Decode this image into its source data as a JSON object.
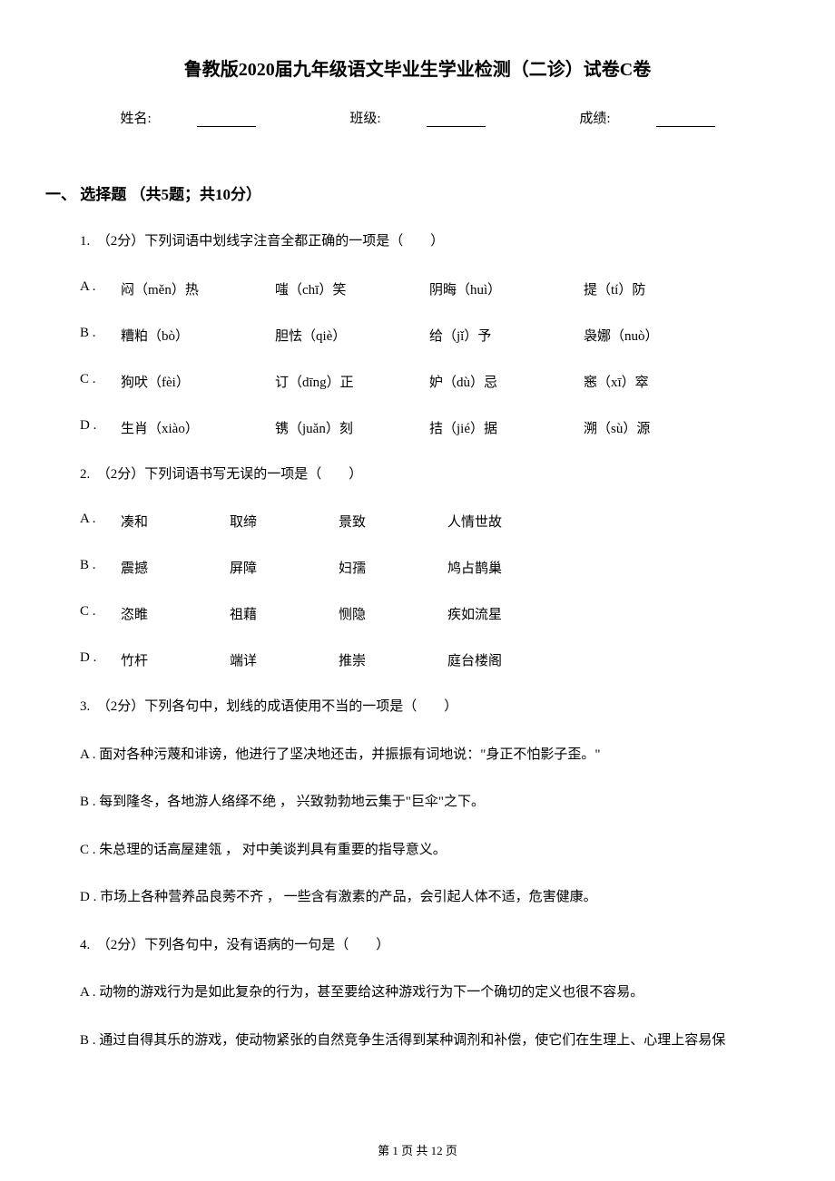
{
  "title": "鲁教版2020届九年级语文毕业生学业检测（二诊）试卷C卷",
  "info": {
    "name_label": "姓名:",
    "class_label": "班级:",
    "score_label": "成绩:"
  },
  "section1": {
    "header": "一、 选择题 （共5题；共10分）"
  },
  "q1": {
    "stem": "1.　（2分）下列词语中划线字注音全都正确的一项是（　　）",
    "optA_label": "A .",
    "optA_1": "闷（měn）热",
    "optA_2": "嗤（chī）笑",
    "optA_3": "阴晦（huì）",
    "optA_4": "提（tí）防",
    "optB_label": "B .",
    "optB_1": "糟粕（bò）",
    "optB_2": "胆怯（qiè）",
    "optB_3": "给（jǐ）予",
    "optB_4": "袅娜（nuò）",
    "optC_label": "C .",
    "optC_1": "狗吠（fèi）",
    "optC_2": "订（dīng）正",
    "optC_3": "妒（dù）忌",
    "optC_4": "窸（xī）窣",
    "optD_label": "D .",
    "optD_1": "生肖（xiào）",
    "optD_2": "镌（juǎn）刻",
    "optD_3": "拮（jié）据",
    "optD_4": "溯（sù）源"
  },
  "q2": {
    "stem": "2.　（2分）下列词语书写无误的一项是（　　）",
    "optA_label": "A .",
    "optA_1": "凑和",
    "optA_2": "取缔",
    "optA_3": "景致",
    "optA_4": "人情世故",
    "optB_label": "B .",
    "optB_1": "震撼",
    "optB_2": "屏障",
    "optB_3": "妇孺",
    "optB_4": "鸠占鹊巢",
    "optC_label": "C .",
    "optC_1": "恣睢",
    "optC_2": "祖藉",
    "optC_3": "恻隐",
    "optC_4": "疾如流星",
    "optD_label": "D .",
    "optD_1": "竹杆",
    "optD_2": "端详",
    "optD_3": "推崇",
    "optD_4": "庭台楼阁"
  },
  "q3": {
    "stem": "3.　（2分）下列各句中，划线的成语使用不当的一项是（　　）",
    "optA": "A . 面对各种污蔑和诽谤，他进行了坚决地还击，并振振有词地说：\"身正不怕影子歪。\"",
    "optB": "B . 每到隆冬，各地游人络绎不绝 ， 兴致勃勃地云集于\"巨伞\"之下。",
    "optC": "C . 朱总理的话高屋建瓴 ， 对中美谈判具有重要的指导意义。",
    "optD": "D . 市场上各种营养品良莠不齐 ， 一些含有激素的产品，会引起人体不适，危害健康。"
  },
  "q4": {
    "stem": "4.　（2分）下列各句中，没有语病的一句是（　　）",
    "optA": "A . 动物的游戏行为是如此复杂的行为，甚至要给这种游戏行为下一个确切的定义也很不容易。",
    "optB": "B . 通过自得其乐的游戏，使动物紧张的自然竞争生活得到某种调剂和补偿，使它们在生理上、心理上容易保"
  },
  "footer": "第 1 页 共 12 页"
}
